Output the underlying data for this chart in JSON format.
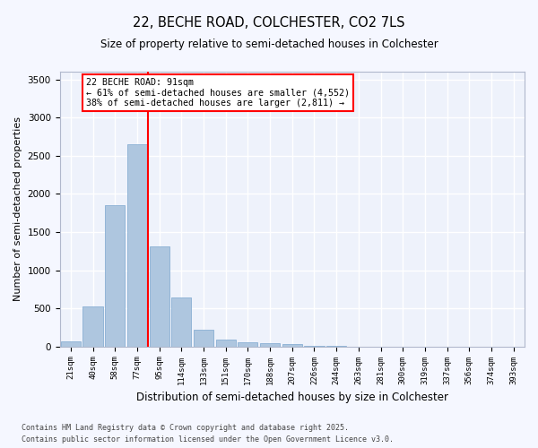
{
  "title": "22, BECHE ROAD, COLCHESTER, CO2 7LS",
  "subtitle": "Size of property relative to semi-detached houses in Colchester",
  "xlabel": "Distribution of semi-detached houses by size in Colchester",
  "ylabel": "Number of semi-detached properties",
  "categories": [
    "21sqm",
    "40sqm",
    "58sqm",
    "77sqm",
    "95sqm",
    "114sqm",
    "133sqm",
    "151sqm",
    "170sqm",
    "188sqm",
    "207sqm",
    "226sqm",
    "244sqm",
    "263sqm",
    "281sqm",
    "300sqm",
    "319sqm",
    "337sqm",
    "356sqm",
    "374sqm",
    "393sqm"
  ],
  "values": [
    70,
    530,
    1850,
    2650,
    1310,
    640,
    220,
    90,
    55,
    40,
    30,
    10,
    5,
    0,
    0,
    0,
    0,
    0,
    0,
    0,
    0
  ],
  "bar_color": "#aec6df",
  "bar_edge_color": "#89afd4",
  "red_line_index": 3.5,
  "annotation_text": "22 BECHE ROAD: 91sqm\n← 61% of semi-detached houses are smaller (4,552)\n38% of semi-detached houses are larger (2,811) →",
  "ylim": [
    0,
    3600
  ],
  "yticks": [
    0,
    500,
    1000,
    1500,
    2000,
    2500,
    3000,
    3500
  ],
  "bg_color": "#eef2fb",
  "grid_color": "#ffffff",
  "fig_bg_color": "#f5f7ff",
  "footer_line1": "Contains HM Land Registry data © Crown copyright and database right 2025.",
  "footer_line2": "Contains public sector information licensed under the Open Government Licence v3.0."
}
